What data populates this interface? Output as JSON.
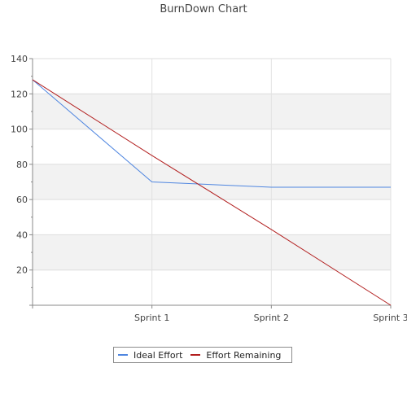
{
  "chart_data": {
    "type": "line",
    "title": "BurnDown Chart",
    "xlabel": "",
    "ylabel": "",
    "categories": [
      "",
      "Sprint 1",
      "Sprint 2",
      "Sprint 3"
    ],
    "ylim": [
      0,
      140
    ],
    "yticks": [
      20,
      40,
      60,
      80,
      100,
      120,
      140
    ],
    "grid": true,
    "legend_position": "bottom",
    "series": [
      {
        "name": "Ideal Effort",
        "values": [
          128,
          70,
          67,
          67
        ],
        "color": "#4f86e0"
      },
      {
        "name": "Effort Remaining",
        "values": [
          128,
          85,
          43,
          0
        ],
        "color": "#b21e1e"
      }
    ]
  }
}
